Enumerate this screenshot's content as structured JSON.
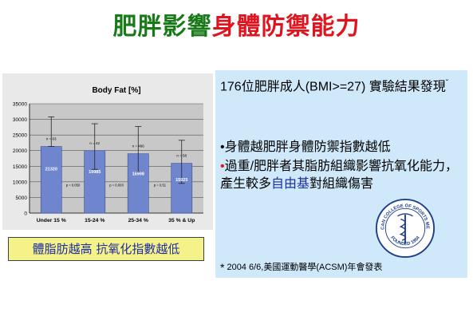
{
  "title": {
    "part1": "肥胖影響",
    "part2": "身體防禦能力",
    "color1": "#1a7a1a",
    "color2": "#e0141e"
  },
  "chart_data": {
    "type": "bar",
    "title": "Body Fat [%]",
    "categories": [
      "Under 15 %",
      "15-24 %",
      "25-34 %",
      "35 % & Up"
    ],
    "values": [
      21320,
      19985,
      18998,
      15925
    ],
    "value_labels": [
      "21320",
      "19985",
      "18998",
      "15925"
    ],
    "error_high": [
      30800,
      28600,
      27700,
      23300
    ],
    "error_low": [
      21320,
      14000,
      13000,
      9500
    ],
    "n_labels": [
      "n = 63",
      "n = 42",
      "n = 466",
      "n = 58"
    ],
    "p_labels": [
      "p = 0.050",
      "p = 0.003",
      "p = 0.51"
    ],
    "ylim": [
      0,
      35000
    ],
    "yticks": [
      0,
      5000,
      10000,
      15000,
      20000,
      25000,
      30000,
      35000
    ],
    "grid": true,
    "bar_color": "#6f86cf"
  },
  "caption": "體脂肪越高 抗氧化指數越低",
  "info": {
    "heading": "176位肥胖成人(BMI>=27) 實驗結果發現",
    "heading_mark": "ˇ",
    "items": [
      {
        "bullet": "•",
        "text": "身體越肥胖身體防禦指數越低"
      },
      {
        "bullet": "•",
        "text_before": "過重/肥胖者其脂肪組織影響抗氧化能力，產生較多",
        "highlight": "自由基",
        "text_after": "對組織傷害"
      }
    ],
    "seal": {
      "icon": "acsm-seal",
      "text_top": "AMERICAN COLLEGE OF SPORTS MEDICINE",
      "text_bottom": "FOUNDED 1954"
    },
    "footnote_mark": "*",
    "footnote": "2004 6/6,美國運動醫學(ACSM)年會發表"
  }
}
